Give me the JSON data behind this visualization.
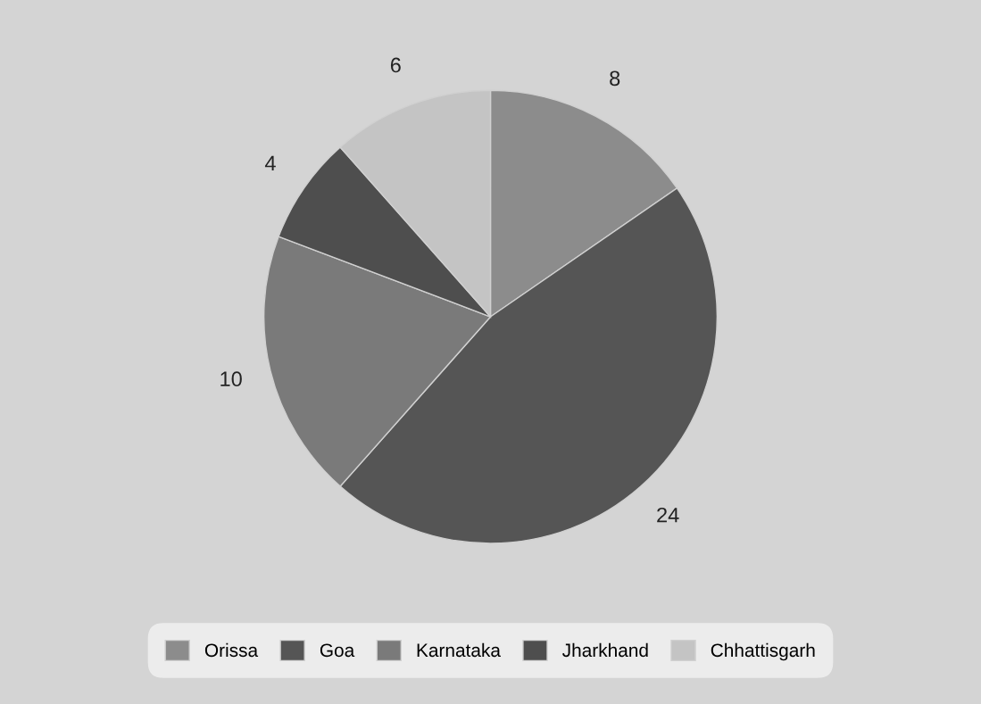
{
  "chart_data": {
    "type": "pie",
    "categories": [
      "Orissa",
      "Goa",
      "Karnataka",
      "Jharkhand",
      "Chhattisgarh"
    ],
    "values": [
      8,
      24,
      10,
      4,
      6
    ],
    "colors": [
      "#8c8c8c",
      "#555555",
      "#7a7a7a",
      "#4e4e4e",
      "#c4c4c4"
    ],
    "data_labels": true,
    "legend": "bottom"
  }
}
